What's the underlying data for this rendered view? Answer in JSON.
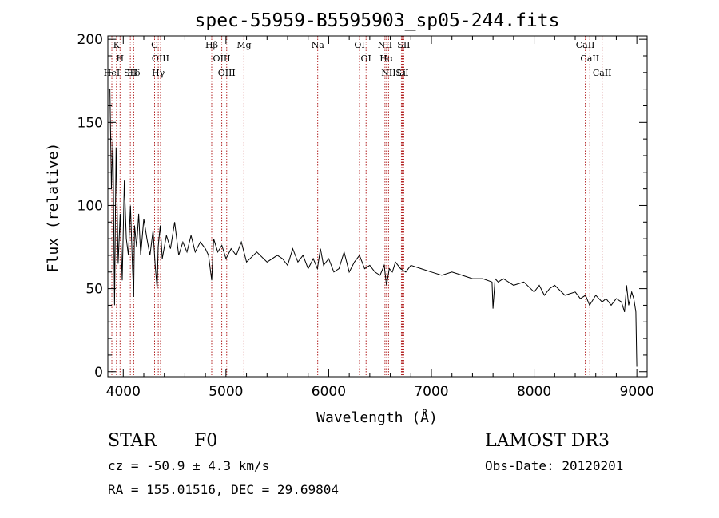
{
  "chart_data": {
    "type": "line",
    "title": "spec-55959-B5595903_sp05-244.fits",
    "xlabel": "Wavelength (Å)",
    "ylabel": "Flux (relative)",
    "xlim": [
      3850,
      9100
    ],
    "ylim": [
      -3,
      202
    ],
    "x_ticks": [
      4000,
      5000,
      6000,
      7000,
      8000,
      9000
    ],
    "y_ticks": [
      0,
      50,
      100,
      150,
      200
    ],
    "spectrum": {
      "name": "flux",
      "x": [
        3870,
        3885,
        3900,
        3915,
        3930,
        3950,
        3970,
        3990,
        4010,
        4030,
        4050,
        4070,
        4090,
        4101,
        4110,
        4130,
        4150,
        4170,
        4200,
        4230,
        4260,
        4290,
        4310,
        4330,
        4340,
        4360,
        4380,
        4420,
        4460,
        4500,
        4540,
        4580,
        4620,
        4660,
        4700,
        4750,
        4800,
        4830,
        4861,
        4880,
        4920,
        4960,
        5000,
        5050,
        5100,
        5150,
        5200,
        5300,
        5400,
        5500,
        5550,
        5600,
        5650,
        5700,
        5750,
        5800,
        5850,
        5890,
        5920,
        5950,
        6000,
        6050,
        6100,
        6150,
        6200,
        6250,
        6300,
        6350,
        6400,
        6450,
        6500,
        6540,
        6563,
        6590,
        6620,
        6650,
        6700,
        6750,
        6800,
        6900,
        7000,
        7100,
        7200,
        7300,
        7400,
        7500,
        7590,
        7600,
        7620,
        7650,
        7700,
        7800,
        7900,
        8000,
        8050,
        8100,
        8150,
        8200,
        8300,
        8400,
        8450,
        8500,
        8540,
        8600,
        8662,
        8700,
        8750,
        8800,
        8850,
        8880,
        8900,
        8920,
        8950,
        8970,
        8990,
        9000
      ],
      "y": [
        170,
        110,
        140,
        40,
        135,
        65,
        95,
        55,
        115,
        80,
        70,
        100,
        62,
        45,
        88,
        75,
        95,
        70,
        92,
        80,
        70,
        85,
        65,
        50,
        75,
        88,
        68,
        82,
        74,
        90,
        70,
        78,
        72,
        82,
        72,
        78,
        74,
        70,
        55,
        80,
        72,
        76,
        68,
        74,
        70,
        78,
        66,
        72,
        66,
        70,
        68,
        64,
        74,
        66,
        70,
        62,
        68,
        62,
        74,
        64,
        68,
        60,
        62,
        72,
        60,
        66,
        70,
        62,
        64,
        60,
        58,
        64,
        52,
        62,
        60,
        66,
        62,
        60,
        64,
        62,
        60,
        58,
        60,
        58,
        56,
        56,
        54,
        38,
        56,
        54,
        56,
        52,
        54,
        48,
        52,
        46,
        50,
        52,
        46,
        48,
        44,
        46,
        40,
        46,
        42,
        44,
        40,
        44,
        42,
        36,
        52,
        40,
        48,
        44,
        36,
        3
      ]
    },
    "emission_lines": [
      {
        "label": "K",
        "x": 3934
      },
      {
        "label": "H",
        "x": 3969
      },
      {
        "label": "HeI",
        "x": 3889
      },
      {
        "label": "SII",
        "x": 4069
      },
      {
        "label": "Hδ",
        "x": 4102
      },
      {
        "label": "G",
        "x": 4305
      },
      {
        "label": "OIII",
        "x": 4363
      },
      {
        "label": "Hγ",
        "x": 4341
      },
      {
        "label": "Hβ",
        "x": 4861
      },
      {
        "label": "OIII",
        "x": 4959
      },
      {
        "label": "OIII",
        "x": 5007
      },
      {
        "label": "Mg",
        "x": 5175
      },
      {
        "label": "Na",
        "x": 5893
      },
      {
        "label": "OI",
        "x": 6300
      },
      {
        "label": "OI",
        "x": 6364
      },
      {
        "label": "NII",
        "x": 6548
      },
      {
        "label": "Hα",
        "x": 6563
      },
      {
        "label": "NII",
        "x": 6583
      },
      {
        "label": "Li",
        "x": 6708
      },
      {
        "label": "SII",
        "x": 6716
      },
      {
        "label": "SII",
        "x": 6731
      },
      {
        "label": "CaII",
        "x": 8498
      },
      {
        "label": "CaII",
        "x": 8542
      },
      {
        "label": "CaII",
        "x": 8662
      }
    ]
  },
  "info": {
    "class": "STAR",
    "subclass": "F0",
    "redshift": "cz = -50.9 ± 4.3 km/s",
    "coords": "RA = 155.01516, DEC =  29.69804",
    "survey": "LAMOST DR3",
    "obs_date": "Obs-Date: 20120201"
  },
  "colors": {
    "spectrum": "#000000",
    "lines": "#b22222",
    "axes": "#000000"
  }
}
